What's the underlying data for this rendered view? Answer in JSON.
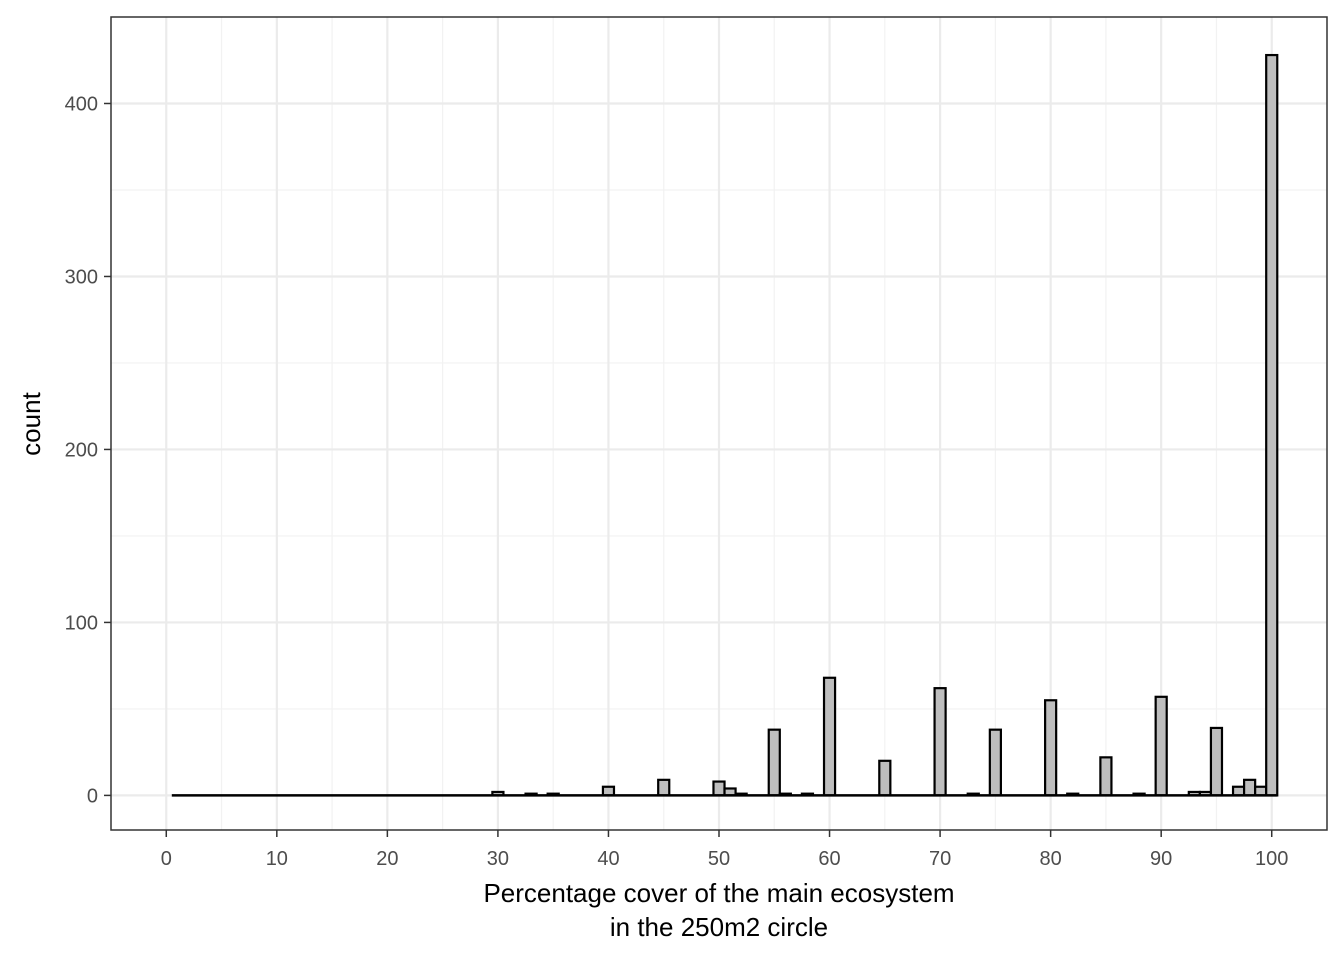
{
  "chart_data": {
    "type": "bar",
    "xlabel_lines": [
      "Percentage cover of the main ecosystem",
      "in the 250m2 circle"
    ],
    "ylabel": "count",
    "xlim": [
      -5,
      105
    ],
    "ylim": [
      -20,
      450
    ],
    "x_ticks": [
      0,
      10,
      20,
      30,
      40,
      50,
      60,
      70,
      80,
      90,
      100
    ],
    "y_ticks": [
      0,
      100,
      200,
      300,
      400
    ],
    "x_tick_labels": [
      "0",
      "10",
      "20",
      "30",
      "40",
      "50",
      "60",
      "70",
      "80",
      "90",
      "100"
    ],
    "y_tick_labels": [
      "0",
      "100",
      "200",
      "300",
      "400"
    ],
    "grid": true,
    "bar_fill": "#bebebe",
    "bar_stroke": "#000000",
    "bin_start": 0.5,
    "bin_end": 100.5,
    "bins": [
      {
        "x": 30,
        "count": 2
      },
      {
        "x": 33,
        "count": 1
      },
      {
        "x": 35,
        "count": 1
      },
      {
        "x": 40,
        "count": 5
      },
      {
        "x": 45,
        "count": 9
      },
      {
        "x": 50,
        "count": 8
      },
      {
        "x": 51,
        "count": 4
      },
      {
        "x": 52,
        "count": 1
      },
      {
        "x": 55,
        "count": 38
      },
      {
        "x": 56,
        "count": 1
      },
      {
        "x": 58,
        "count": 1
      },
      {
        "x": 60,
        "count": 68
      },
      {
        "x": 65,
        "count": 20
      },
      {
        "x": 70,
        "count": 62
      },
      {
        "x": 73,
        "count": 1
      },
      {
        "x": 75,
        "count": 38
      },
      {
        "x": 80,
        "count": 55
      },
      {
        "x": 82,
        "count": 1
      },
      {
        "x": 85,
        "count": 22
      },
      {
        "x": 88,
        "count": 1
      },
      {
        "x": 90,
        "count": 57
      },
      {
        "x": 93,
        "count": 2
      },
      {
        "x": 94,
        "count": 2
      },
      {
        "x": 95,
        "count": 39
      },
      {
        "x": 97,
        "count": 5
      },
      {
        "x": 98,
        "count": 9
      },
      {
        "x": 99,
        "count": 5
      },
      {
        "x": 100,
        "count": 428
      }
    ]
  }
}
